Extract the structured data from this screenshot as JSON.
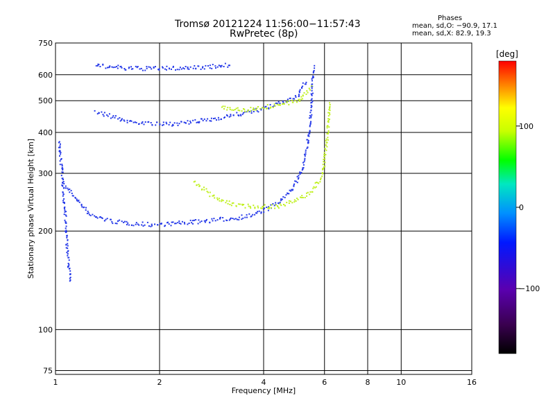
{
  "chart_data": {
    "type": "scatter",
    "title": "Tromsø 20121224 11:56:00−11:57:43",
    "subtitle": "RwPretec (8p)",
    "xlabel": "Frequency [MHz]",
    "ylabel": "Stationary phase Virtual Height [km]",
    "xscale": "log",
    "yscale": "log",
    "xlim": [
      1,
      16
    ],
    "ylim": [
      73,
      750
    ],
    "xticks": [
      1,
      2,
      4,
      6,
      8,
      10,
      16
    ],
    "xtick_labels": [
      "1",
      "2",
      "4",
      "6",
      "8",
      "10",
      "16"
    ],
    "yticks": [
      75,
      100,
      200,
      300,
      400,
      500,
      600,
      750
    ],
    "ytick_labels": [
      "75",
      "100",
      "200",
      "300",
      "400",
      "500",
      "600",
      "750"
    ],
    "grid": true,
    "phases_box": {
      "heading": "Phases",
      "o_line": "mean, sd,O: −90.9, 17.1",
      "x_line": "mean, sd,X:  82.9, 19.3"
    },
    "colorbar": {
      "label": "[deg]",
      "range": [
        -180,
        180
      ],
      "ticks": [
        100,
        0,
        -100
      ],
      "tick_labels": [
        "100",
        "0",
        "−100"
      ]
    },
    "series": [
      {
        "name": "O",
        "color": "#2438e8",
        "traces": [
          {
            "x": [
              1.05,
              1.25,
              1.45,
              1.65,
              1.9,
              2.2,
              2.5,
              2.9,
              3.3,
              3.7,
              4.1,
              4.5,
              4.8,
              5.1,
              5.3,
              5.45,
              5.55
            ],
            "y": [
              280,
              225,
              215,
              212,
              210,
              212,
              214,
              217,
              220,
              225,
              235,
              250,
              270,
              300,
              350,
              450,
              640
            ]
          },
          {
            "x": [
              1.3,
              1.6,
              2.0,
              2.4,
              2.8,
              3.1,
              3.5,
              4.0,
              4.5,
              5.0,
              5.3
            ],
            "y": [
              465,
              435,
              425,
              430,
              440,
              450,
              460,
              475,
              495,
              520,
              580
            ]
          },
          {
            "x": [
              1.3,
              1.4,
              1.6,
              1.8,
              2.0,
              2.3,
              2.6,
              2.9,
              3.2
            ],
            "y": [
              640,
              640,
              630,
              630,
              630,
              632,
              635,
              640,
              645
            ]
          },
          {
            "x": [
              1.02,
              1.04,
              1.06,
              1.08,
              1.1
            ],
            "y": [
              380,
              300,
              230,
              170,
              140
            ]
          }
        ]
      },
      {
        "name": "X",
        "color": "#c0f020",
        "traces": [
          {
            "x": [
              2.5,
              2.8,
              3.1,
              3.5,
              4.0,
              4.5,
              5.0,
              5.5,
              5.9,
              6.1,
              6.2
            ],
            "y": [
              285,
              260,
              245,
              240,
              238,
              240,
              250,
              265,
              300,
              400,
              500
            ]
          },
          {
            "x": [
              3.0,
              3.5,
              4.0,
              4.5,
              5.0,
              5.5
            ],
            "y": [
              480,
              470,
              480,
              490,
              500,
              560
            ]
          }
        ]
      }
    ]
  }
}
